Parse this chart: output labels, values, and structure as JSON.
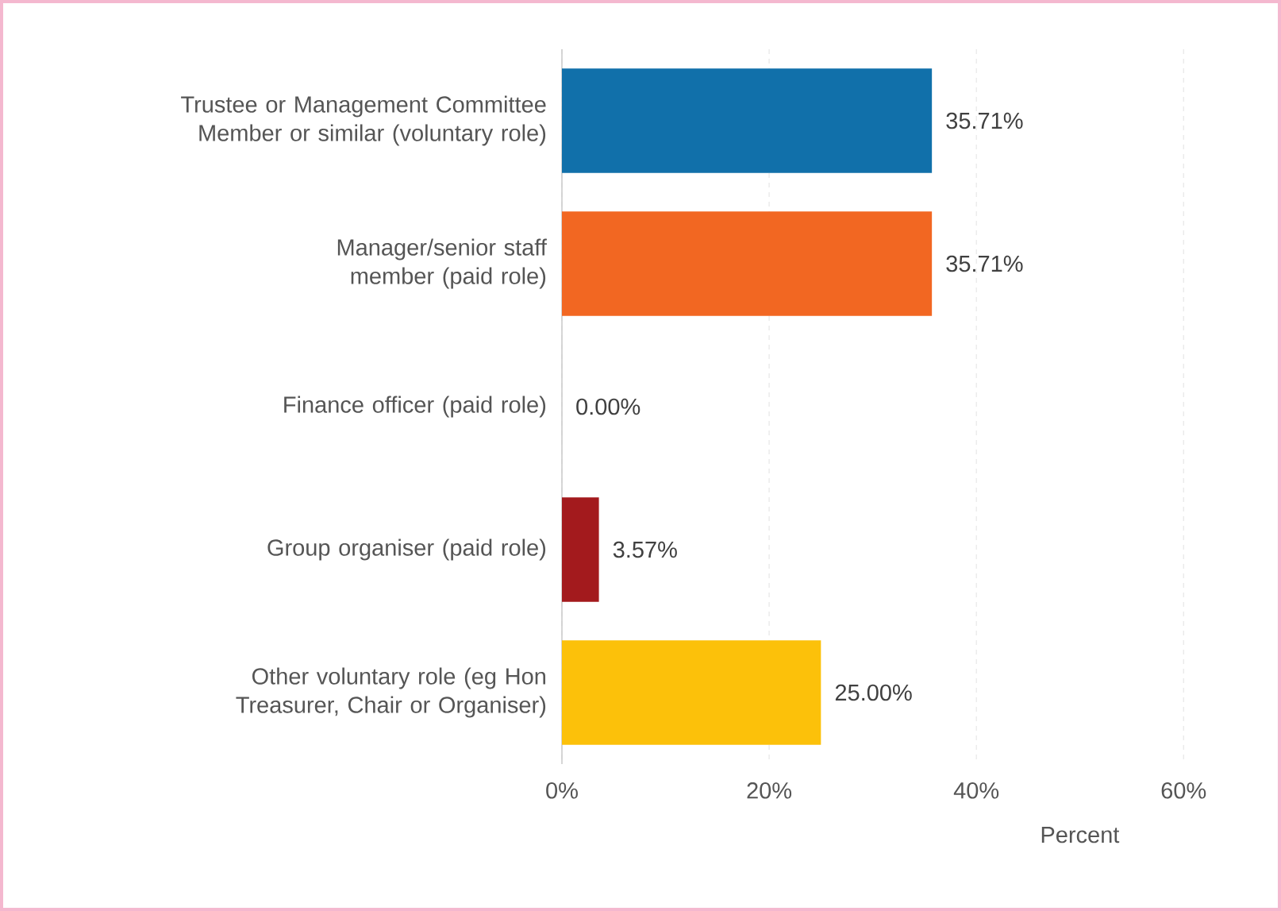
{
  "chart_data": {
    "type": "bar",
    "orientation": "horizontal",
    "xlabel": "Percent",
    "categories": [
      "Trustee or Management Committee Member or similar (voluntary role)",
      "Manager/senior staff member (paid role)",
      "Finance officer (paid role)",
      "Group organiser (paid role)",
      "Other voluntary role (eg Hon Treasurer, Chair or Organiser)"
    ],
    "values": [
      35.71,
      35.71,
      0,
      3.57,
      25
    ],
    "colors": [
      "#1170aa",
      "#f26722",
      "#a31a1d",
      "#a31a1d",
      "#fcc10a"
    ],
    "value_labels": [
      "35.71%",
      "35.71%",
      "0.00%",
      "3.57%",
      "25.00%"
    ],
    "xlim": [
      0,
      60
    ],
    "xticks": [
      {
        "value": 0,
        "label": "0%"
      },
      {
        "value": 20,
        "label": "20%"
      },
      {
        "value": 40,
        "label": "40%"
      },
      {
        "value": 60,
        "label": "60%"
      }
    ],
    "grid": "x"
  }
}
